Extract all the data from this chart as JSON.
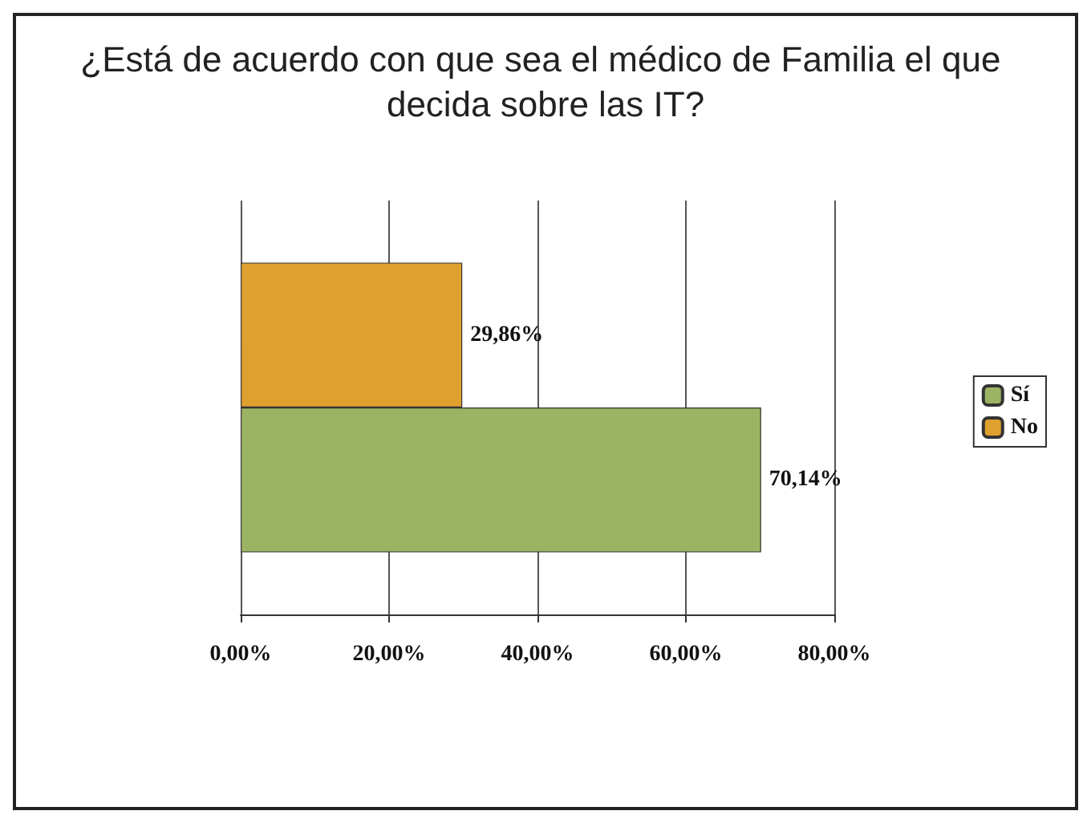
{
  "chart_data": {
    "type": "bar",
    "orientation": "horizontal",
    "title": "¿Está de acuerdo con que sea el médico de Familia el que decida sobre las IT?",
    "categories": [
      null
    ],
    "series": [
      {
        "name": "No",
        "color": "#e0a030",
        "values": [
          29.86
        ],
        "value_labels": [
          "29,86%"
        ]
      },
      {
        "name": "Sí",
        "color": "#9bb464",
        "values": [
          70.14
        ],
        "value_labels": [
          "70,14%"
        ]
      }
    ],
    "xlim": [
      0,
      80
    ],
    "xticks": [
      {
        "value": 0,
        "label": "0,00%"
      },
      {
        "value": 20,
        "label": "20,00%"
      },
      {
        "value": 40,
        "label": "40,00%"
      },
      {
        "value": 60,
        "label": "60,00%"
      },
      {
        "value": 80,
        "label": "80,00%"
      }
    ],
    "grid": "x",
    "legend": "right"
  }
}
